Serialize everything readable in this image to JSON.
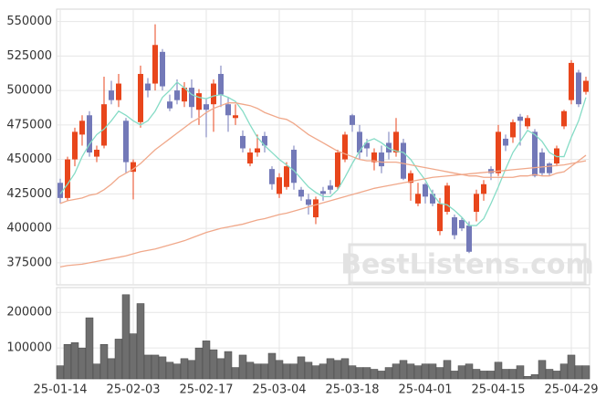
{
  "chart_data": [
    {
      "type": "candlestick",
      "open": [
        433000,
        422000,
        450000,
        468000,
        482000,
        452000,
        460000,
        500000,
        493000,
        478000,
        441000,
        477000,
        505000,
        505000,
        528000,
        492000,
        500000,
        492000,
        502000,
        486000,
        490000,
        490000,
        512000,
        490000,
        480000,
        467000,
        447000,
        455000,
        467000,
        443000,
        425000,
        430000,
        457000,
        428000,
        421000,
        408000,
        427000,
        431000,
        430000,
        450000,
        482000,
        470000,
        462000,
        448000,
        455000,
        462000,
        455000,
        462000,
        433000,
        418000,
        432000,
        425000,
        398000,
        412000,
        408000,
        406000,
        402000,
        412000,
        425000,
        443000,
        440000,
        465000,
        466000,
        481000,
        474000,
        470000,
        455000,
        447000,
        447000,
        474000,
        493000,
        513000,
        499000
      ],
      "high": [
        436000,
        452000,
        473000,
        482000,
        485000,
        460000,
        510000,
        507000,
        512000,
        480000,
        450000,
        518000,
        509000,
        548000,
        530000,
        497000,
        508000,
        506000,
        508000,
        501000,
        494000,
        508000,
        518000,
        495000,
        490000,
        471000,
        458000,
        468000,
        470000,
        445000,
        440000,
        448000,
        460000,
        430000,
        425000,
        423000,
        430000,
        435000,
        457000,
        470000,
        483000,
        475000,
        465000,
        458000,
        460000,
        470000,
        480000,
        465000,
        442000,
        433000,
        433000,
        428000,
        422000,
        433000,
        410000,
        408000,
        405000,
        428000,
        435000,
        445000,
        475000,
        468000,
        479000,
        483000,
        482000,
        472000,
        458000,
        448000,
        460000,
        486000,
        522000,
        515000,
        510000
      ],
      "low": [
        418000,
        420000,
        445000,
        460000,
        452000,
        448000,
        458000,
        490000,
        488000,
        440000,
        421000,
        473000,
        495000,
        500000,
        500000,
        485000,
        490000,
        488000,
        480000,
        475000,
        466000,
        470000,
        488000,
        470000,
        475000,
        455000,
        445000,
        452000,
        455000,
        428000,
        422000,
        428000,
        428000,
        420000,
        410000,
        403000,
        420000,
        425000,
        428000,
        448000,
        470000,
        450000,
        452000,
        442000,
        440000,
        450000,
        452000,
        435000,
        420000,
        416000,
        418000,
        416000,
        395000,
        410000,
        392000,
        398000,
        382000,
        405000,
        420000,
        435000,
        438000,
        456000,
        462000,
        460000,
        472000,
        437000,
        438000,
        438000,
        445000,
        472000,
        490000,
        488000,
        497000
      ],
      "close": [
        422000,
        450000,
        470000,
        478000,
        455000,
        457000,
        490000,
        493000,
        505000,
        448000,
        448000,
        512000,
        500000,
        533000,
        503000,
        487000,
        493000,
        502000,
        488000,
        498000,
        486000,
        505000,
        497000,
        482000,
        482000,
        458000,
        455000,
        458000,
        460000,
        432000,
        437000,
        445000,
        433000,
        423000,
        417000,
        421000,
        425000,
        428000,
        455000,
        468000,
        475000,
        455000,
        458000,
        455000,
        445000,
        455000,
        470000,
        436000,
        440000,
        425000,
        423000,
        418000,
        418000,
        431000,
        395000,
        400000,
        383000,
        425000,
        432000,
        440000,
        470000,
        460000,
        477000,
        478000,
        480000,
        438000,
        440000,
        440000,
        458000,
        485000,
        520000,
        490000,
        507000
      ],
      "up_color": "#e8461c",
      "down_color": "#7379b8",
      "lines": [
        {
          "color": "#86dcc6",
          "values": [
            425000,
            432000,
            440000,
            452000,
            461000,
            468000,
            472000,
            478000,
            485000,
            482000,
            478000,
            475000,
            478000,
            485000,
            495000,
            500000,
            506000,
            502000,
            497000,
            495000,
            494000,
            496000,
            497000,
            495000,
            492000,
            485000,
            475000,
            466000,
            460000,
            455000,
            450000,
            446000,
            442000,
            436000,
            430000,
            426000,
            423000,
            423000,
            428000,
            437000,
            447000,
            456000,
            463000,
            465000,
            462000,
            458000,
            456000,
            455000,
            450000,
            442000,
            435000,
            425000,
            418000,
            417000,
            413000,
            408000,
            402000,
            402000,
            407000,
            418000,
            430000,
            443000,
            455000,
            463000,
            471000,
            468000,
            463000,
            455000,
            452000,
            452000,
            466000,
            478000,
            495000
          ]
        },
        {
          "color": "#f0a88a",
          "values": [
            418000,
            420000,
            421000,
            422000,
            424000,
            425000,
            428000,
            432000,
            437000,
            440000,
            443000,
            447000,
            452000,
            457000,
            461000,
            465000,
            469000,
            473000,
            477000,
            480000,
            484000,
            487000,
            489000,
            491000,
            491000,
            490000,
            489000,
            487000,
            484000,
            482000,
            480000,
            479000,
            476000,
            472000,
            468000,
            465000,
            462000,
            459000,
            456000,
            454000,
            452000,
            450000,
            449000,
            449000,
            448000,
            448000,
            448000,
            447000,
            446000,
            445000,
            444000,
            443000,
            442000,
            441000,
            440000,
            439000,
            438000,
            438000,
            437000,
            437000,
            437000,
            437000,
            437000,
            438000,
            438000,
            439000,
            438000,
            438000,
            440000,
            441000,
            445000,
            449000,
            453000
          ]
        },
        {
          "color": "#f0a88a",
          "values": [
            372000,
            373000,
            373500,
            374000,
            375000,
            376000,
            377000,
            378000,
            379000,
            380000,
            381500,
            383000,
            384000,
            385000,
            386500,
            388000,
            389500,
            391000,
            393000,
            395000,
            397000,
            398500,
            400000,
            401000,
            402000,
            403000,
            404500,
            406000,
            407000,
            408500,
            410000,
            411000,
            412500,
            414000,
            415500,
            417000,
            418500,
            420000,
            421500,
            423000,
            424500,
            426000,
            427500,
            429000,
            430000,
            431000,
            432000,
            433000,
            434000,
            435000,
            436000,
            437000,
            437500,
            438000,
            438500,
            439000,
            439500,
            440000,
            440500,
            441000,
            441500,
            442000,
            442500,
            443000,
            443500,
            444000,
            444500,
            445000,
            445500,
            446000,
            447000,
            448000,
            449000
          ]
        }
      ],
      "ylim": [
        359000,
        559000
      ],
      "yticks": [
        375000,
        400000,
        425000,
        450000,
        475000,
        500000,
        525000,
        550000
      ],
      "grid": true,
      "watermark": "BestListens.com"
    },
    {
      "type": "bar",
      "categories": [
        "25-01-14",
        null,
        null,
        null,
        null,
        null,
        null,
        null,
        null,
        null,
        "25-02-03",
        null,
        null,
        null,
        null,
        null,
        null,
        null,
        null,
        null,
        "25-02-17",
        null,
        null,
        null,
        null,
        null,
        null,
        null,
        null,
        null,
        "25-03-04",
        null,
        null,
        null,
        null,
        null,
        null,
        null,
        null,
        null,
        "25-03-18",
        null,
        null,
        null,
        null,
        null,
        null,
        null,
        null,
        null,
        "25-04-01",
        null,
        null,
        null,
        null,
        null,
        null,
        null,
        null,
        null,
        "25-04-15",
        null,
        null,
        null,
        null,
        null,
        null,
        null,
        null,
        null,
        "25-04-29",
        null,
        null
      ],
      "values": [
        50000,
        110000,
        115000,
        100000,
        185000,
        55000,
        110000,
        70000,
        125000,
        250000,
        140000,
        225000,
        80000,
        80000,
        75000,
        60000,
        55000,
        70000,
        65000,
        100000,
        120000,
        95000,
        70000,
        90000,
        45000,
        80000,
        60000,
        55000,
        55000,
        85000,
        65000,
        55000,
        55000,
        75000,
        60000,
        50000,
        55000,
        70000,
        65000,
        70000,
        50000,
        45000,
        45000,
        40000,
        35000,
        45000,
        55000,
        65000,
        55000,
        50000,
        55000,
        55000,
        45000,
        65000,
        35000,
        50000,
        55000,
        40000,
        35000,
        35000,
        60000,
        40000,
        40000,
        50000,
        20000,
        25000,
        65000,
        40000,
        35000,
        55000,
        80000,
        50000,
        50000
      ],
      "color": "#6e6e6e",
      "ylim": [
        13000,
        270000
      ],
      "yticks": [
        100000,
        200000
      ],
      "grid": true
    }
  ]
}
